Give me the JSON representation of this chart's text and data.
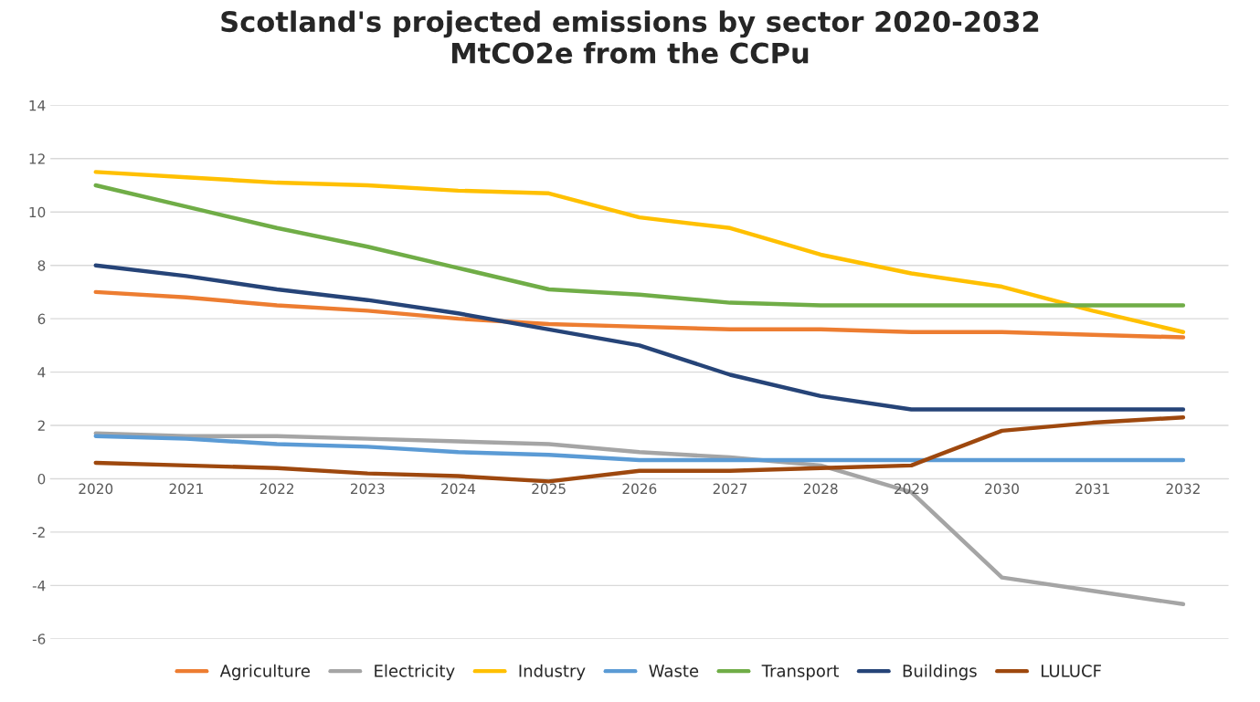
{
  "chart_data": {
    "type": "line",
    "title": "Scotland's projected emissions by sector 2020-2032\nMtCO2e from the CCPu",
    "categories": [
      "2020",
      "2021",
      "2022",
      "2023",
      "2024",
      "2025",
      "2026",
      "2027",
      "2028",
      "2029",
      "2030",
      "2031",
      "2032"
    ],
    "series": [
      {
        "name": "Agriculture",
        "color": "#ed7d31",
        "values": [
          7.0,
          6.8,
          6.5,
          6.3,
          6.0,
          5.8,
          5.7,
          5.6,
          5.6,
          5.5,
          5.5,
          5.4,
          5.3
        ]
      },
      {
        "name": "Electricity",
        "color": "#a5a5a5",
        "values": [
          1.7,
          1.6,
          1.6,
          1.5,
          1.4,
          1.3,
          1.0,
          0.8,
          0.5,
          -0.5,
          -3.7,
          -4.2,
          -4.7
        ]
      },
      {
        "name": "Industry",
        "color": "#ffc000",
        "values": [
          11.5,
          11.3,
          11.1,
          11.0,
          10.8,
          10.7,
          9.8,
          9.4,
          8.4,
          7.7,
          7.2,
          6.3,
          5.5
        ]
      },
      {
        "name": "Waste",
        "color": "#5b9bd5",
        "values": [
          1.6,
          1.5,
          1.3,
          1.2,
          1.0,
          0.9,
          0.7,
          0.7,
          0.7,
          0.7,
          0.7,
          0.7,
          0.7
        ]
      },
      {
        "name": "Transport",
        "color": "#70ad47",
        "values": [
          11.0,
          10.2,
          9.4,
          8.7,
          7.9,
          7.1,
          6.9,
          6.6,
          6.5,
          6.5,
          6.5,
          6.5,
          6.5
        ]
      },
      {
        "name": "Buildings",
        "color": "#264478",
        "values": [
          8.0,
          7.6,
          7.1,
          6.7,
          6.2,
          5.6,
          5.0,
          3.9,
          3.1,
          2.6,
          2.6,
          2.6,
          2.6
        ]
      },
      {
        "name": "LULUCF",
        "color": "#9e480e",
        "values": [
          0.6,
          0.5,
          0.4,
          0.2,
          0.1,
          -0.1,
          0.3,
          0.3,
          0.4,
          0.5,
          1.8,
          2.1,
          2.3
        ]
      }
    ],
    "ylim": [
      -6,
      14
    ],
    "yticks": [
      -6,
      -4,
      -2,
      0,
      2,
      4,
      6,
      8,
      10,
      12,
      14
    ],
    "grid": "y",
    "legend": "bottom",
    "line_style": "solid",
    "marker": "none"
  }
}
